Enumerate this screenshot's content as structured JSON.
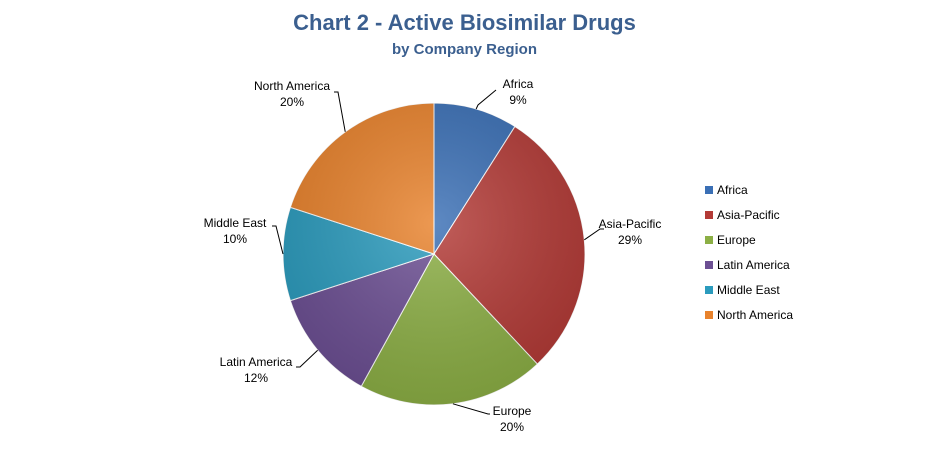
{
  "chart_data": {
    "type": "pie",
    "title": "Chart 2 - Active Biosimilar Drugs",
    "subtitle": "by Company Region",
    "legend_position": "right",
    "slices": [
      {
        "name": "Africa",
        "value": 9,
        "label": "9%",
        "color": "#3a6fb5"
      },
      {
        "name": "Asia-Pacific",
        "value": 29,
        "label": "29%",
        "color": "#b33a36"
      },
      {
        "name": "Europe",
        "value": 20,
        "label": "20%",
        "color": "#8caf45"
      },
      {
        "name": "Latin America",
        "value": 12,
        "label": "12%",
        "color": "#6c4f93"
      },
      {
        "name": "Middle East",
        "value": 10,
        "label": "10%",
        "color": "#2b9bbd"
      },
      {
        "name": "North America",
        "value": 20,
        "label": "20%",
        "color": "#e8822c"
      }
    ]
  }
}
